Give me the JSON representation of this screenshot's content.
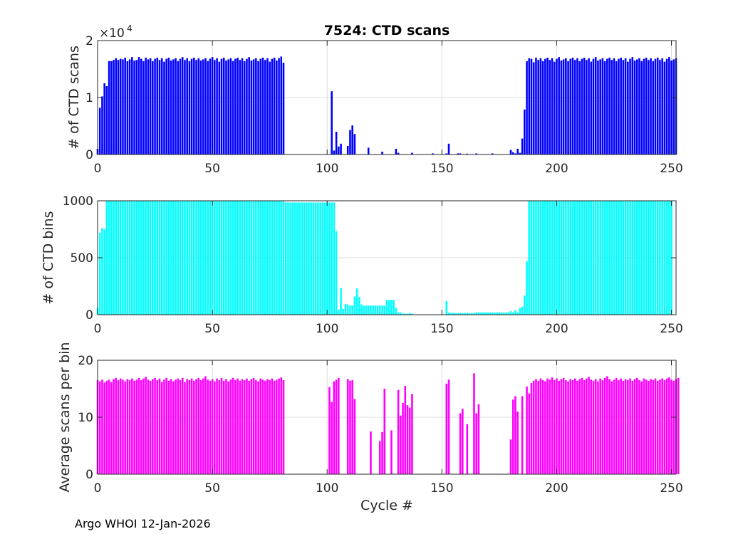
{
  "figure": {
    "title": "7524: CTD scans",
    "footer": "Argo WHOI 12-Jan-2026",
    "xlabel": "Cycle #"
  },
  "chart_data": [
    {
      "type": "bar",
      "title": "7524: CTD scans",
      "xlabel": "",
      "ylabel": "# of CTD scans",
      "xlim": [
        0,
        252
      ],
      "ylim": [
        0,
        20000
      ],
      "xticks": [
        "0",
        "50",
        "100",
        "150",
        "200",
        "250"
      ],
      "yticks": [
        "0",
        "1",
        "2"
      ],
      "exponent_label": "×10",
      "exponent_power": "4",
      "color": "#0000ff",
      "segments": [
        {
          "from": 0,
          "values": [
            1000,
            8200,
            10200,
            12500,
            12000,
            16400,
            16400,
            16600,
            16900,
            16600,
            16800,
            16700,
            17000,
            16400,
            16700,
            17100,
            16500,
            16600,
            17100,
            16800,
            16400,
            17000,
            16700,
            16900,
            16400,
            16800,
            17000,
            16600,
            16900,
            16300,
            16800,
            17000,
            16500,
            16700,
            16900,
            16400,
            16800,
            17100,
            16600,
            16900,
            16400,
            16800,
            17000,
            16600,
            16900,
            16500,
            16700,
            16900,
            16400,
            16800,
            17100,
            16600,
            16900,
            16300,
            16800,
            17000,
            16500,
            16700,
            16900,
            16400,
            16800,
            17000,
            16600,
            16900,
            16400,
            16800,
            17100,
            16500,
            16700,
            16900,
            16400,
            16800,
            17000,
            16600,
            16900,
            16300,
            16800,
            17000,
            16500,
            16900,
            17200,
            16100
          ]
        },
        {
          "from": 102,
          "values": [
            11100,
            700,
            4000,
            1400,
            1900,
            0,
            0,
            1500,
            4300,
            5100,
            3600
          ]
        },
        {
          "from": 118,
          "values": [
            1200
          ]
        },
        {
          "from": 124,
          "values": [
            500
          ]
        },
        {
          "from": 130,
          "values": [
            1000,
            300
          ]
        },
        {
          "from": 137,
          "values": [
            300
          ]
        },
        {
          "from": 146,
          "values": [
            200
          ]
        },
        {
          "from": 152,
          "values": [
            200,
            1900
          ]
        },
        {
          "from": 157,
          "values": [
            200,
            200
          ]
        },
        {
          "from": 161,
          "values": [
            150
          ]
        },
        {
          "from": 165,
          "values": [
            200
          ]
        },
        {
          "from": 172,
          "values": [
            200
          ]
        },
        {
          "from": 180,
          "values": [
            800,
            400,
            200,
            1000,
            300,
            2800,
            7900,
            16400,
            16900,
            16800,
            16200,
            17000,
            16600,
            16900,
            16400,
            16800,
            17000,
            16600,
            16900,
            16300,
            16800,
            17100,
            16500,
            16700,
            16900,
            16400,
            16800,
            17000,
            16600,
            16900,
            16400,
            16800,
            17000,
            16600,
            16900,
            16300,
            16800,
            17100,
            16500,
            16700,
            16900,
            16400,
            16800,
            17000,
            16600,
            16900,
            16400,
            16800,
            17000,
            16600,
            16900,
            16300,
            16800,
            17100,
            16500,
            16700,
            16900,
            16400,
            16800,
            17000,
            16600,
            16900,
            16400,
            16800,
            17000,
            16600,
            16900,
            16300,
            16800,
            17100,
            16500,
            16700,
            16900
          ]
        }
      ]
    },
    {
      "type": "bar",
      "ylabel": "# of CTD bins",
      "xlim": [
        0,
        252
      ],
      "ylim": [
        0,
        1000
      ],
      "xticks": [
        "0",
        "50",
        "100",
        "150",
        "200",
        "250"
      ],
      "yticks": [
        "0",
        "500",
        "1000"
      ],
      "color": "#00ffff",
      "segments": [
        {
          "from": 0,
          "values": [
            60,
            720,
            760,
            750,
            1000,
            1000,
            1000,
            1000,
            1000,
            1000,
            1000,
            1000,
            1000,
            1000,
            1000,
            1000,
            1000,
            1000,
            1000,
            1000,
            1000,
            1000,
            1000,
            1000,
            1000,
            1000,
            1000,
            1000,
            1000,
            1000,
            1000,
            1000,
            1000,
            1000,
            1000,
            1000,
            1000,
            1000,
            1000,
            1000,
            1000,
            1000,
            1000,
            1000,
            1000,
            1000,
            1000,
            1000,
            1000,
            1000,
            1000,
            1000,
            1000,
            1000,
            1000,
            1000,
            1000,
            1000,
            1000,
            1000,
            1000,
            1000,
            1000,
            1000,
            1000,
            1000,
            1000,
            1000,
            1000,
            1000,
            1000,
            1000,
            1000,
            1000,
            1000,
            1000,
            1000,
            1000,
            1000,
            1000,
            1000,
            1000,
            985,
            985,
            985,
            985,
            985,
            985,
            985,
            985,
            985,
            985,
            985,
            985,
            985,
            985,
            985,
            985,
            985,
            985,
            985,
            985,
            985,
            985,
            735,
            45,
            235,
            50,
            95,
            90,
            80,
            80,
            160,
            230,
            155,
            90,
            80,
            80,
            80,
            80,
            80,
            80,
            80,
            80,
            80,
            80,
            130,
            130,
            130,
            130,
            60,
            20,
            20,
            10,
            10,
            10,
            15,
            10
          ]
        },
        {
          "from": 152,
          "values": [
            120,
            20,
            15,
            15,
            15,
            15,
            15,
            15,
            15,
            15,
            15,
            15,
            15,
            20,
            20,
            20,
            20,
            20,
            20,
            20,
            20,
            20,
            20,
            20,
            20,
            20,
            20,
            20,
            30,
            20,
            40,
            20,
            60,
            70,
            170,
            470,
            1000,
            1000,
            1000,
            1000,
            1000,
            1000,
            1000,
            1000,
            1000,
            1000,
            1000,
            1000,
            1000,
            1000,
            1000,
            1000,
            1000,
            1000,
            1000,
            1000,
            1000,
            1000,
            1000,
            1000,
            1000,
            1000,
            1000,
            1000,
            1000,
            1000,
            1000,
            1000,
            1000,
            1000,
            1000,
            1000,
            1000,
            1000,
            1000,
            1000,
            1000,
            1000,
            1000,
            1000,
            1000,
            1000,
            1000,
            1000,
            1000,
            1000,
            1000,
            1000,
            1000,
            1000,
            1000,
            1000,
            1000,
            1000,
            1000,
            1000,
            1000,
            1000,
            1000
          ]
        }
      ]
    },
    {
      "type": "bar",
      "ylabel": "Average scans per bin",
      "xlabel": "Cycle #",
      "xlim": [
        0,
        252
      ],
      "ylim": [
        0,
        20
      ],
      "xticks": [
        "0",
        "50",
        "100",
        "150",
        "200",
        "250"
      ],
      "yticks": [
        "0",
        "10",
        "20"
      ],
      "color": "#ff00ff",
      "segments": [
        {
          "from": 0,
          "values": [
            16.5,
            16.3,
            16.6,
            16.1,
            16.4,
            16.6,
            16.2,
            16.7,
            16.9,
            16.5,
            16.8,
            16.6,
            16.3,
            16.7,
            16.5,
            16.8,
            16.4,
            16.6,
            16.9,
            16.5,
            16.8,
            17.1,
            16.6,
            16.4,
            16.7,
            16.9,
            16.5,
            16.8,
            16.2,
            16.6,
            16.9,
            16.4,
            16.7,
            16.3,
            16.6,
            16.8,
            16.5,
            16.9,
            16.2,
            16.7,
            16.5,
            16.8,
            16.4,
            16.7,
            16.9,
            16.5,
            16.8,
            17.2,
            16.6,
            16.4,
            16.7,
            16.3,
            16.8,
            16.5,
            16.9,
            16.4,
            16.7,
            16.3,
            16.6,
            16.9,
            16.5,
            16.8,
            16.4,
            16.7,
            16.5,
            16.8,
            16.4,
            16.7,
            16.9,
            16.5,
            16.3,
            16.8,
            16.6,
            16.4,
            16.7,
            16.5,
            16.8,
            16.4,
            16.6,
            16.8,
            17.0,
            16.5
          ]
        },
        {
          "from": 101,
          "values": [
            15.3,
            12.7,
            16.3,
            16.6,
            16.9
          ]
        },
        {
          "from": 109,
          "values": [
            16.7,
            16.4,
            16.5,
            13.2
          ]
        },
        {
          "from": 119,
          "values": [
            7.5
          ]
        },
        {
          "from": 123,
          "values": [
            5.8,
            7.4,
            15.0
          ]
        },
        {
          "from": 128,
          "values": [
            7.7
          ]
        },
        {
          "from": 131,
          "values": [
            14.8,
            10.3,
            12.5,
            15.5,
            12.1,
            11.7,
            14.1
          ]
        },
        {
          "from": 152,
          "values": [
            15.9,
            16.6
          ]
        },
        {
          "from": 158,
          "values": [
            10.7,
            11.5
          ]
        },
        {
          "from": 161,
          "values": [
            8.8
          ]
        },
        {
          "from": 164,
          "values": [
            17.7,
            10.7,
            12.3
          ]
        },
        {
          "from": 180,
          "values": [
            6.1,
            13.1,
            13.7,
            11.0
          ]
        },
        {
          "from": 185,
          "values": [
            13.7
          ]
        },
        {
          "from": 187,
          "values": [
            15.4,
            14.2,
            16.0,
            16.4,
            16.7,
            16.4,
            16.8,
            16.5,
            16.3,
            16.8,
            16.6,
            17.0,
            16.5,
            16.8,
            16.4,
            16.7,
            16.9,
            16.5,
            16.3,
            16.7,
            16.5,
            16.8,
            16.4,
            16.7,
            16.9,
            16.5,
            16.8,
            17.1,
            16.6,
            16.4,
            16.7,
            16.3,
            16.8,
            16.5,
            16.9,
            17.2,
            16.7,
            16.3,
            16.6,
            16.9,
            16.5,
            16.8,
            16.4,
            16.7,
            16.5,
            16.8,
            16.4,
            16.7,
            16.9,
            16.5,
            16.3,
            16.8,
            16.6,
            16.4,
            16.7,
            16.5,
            16.8,
            16.4,
            16.6,
            16.8,
            16.5,
            16.8,
            17.0,
            16.6,
            16.4,
            16.7,
            16.9
          ]
        }
      ]
    }
  ]
}
